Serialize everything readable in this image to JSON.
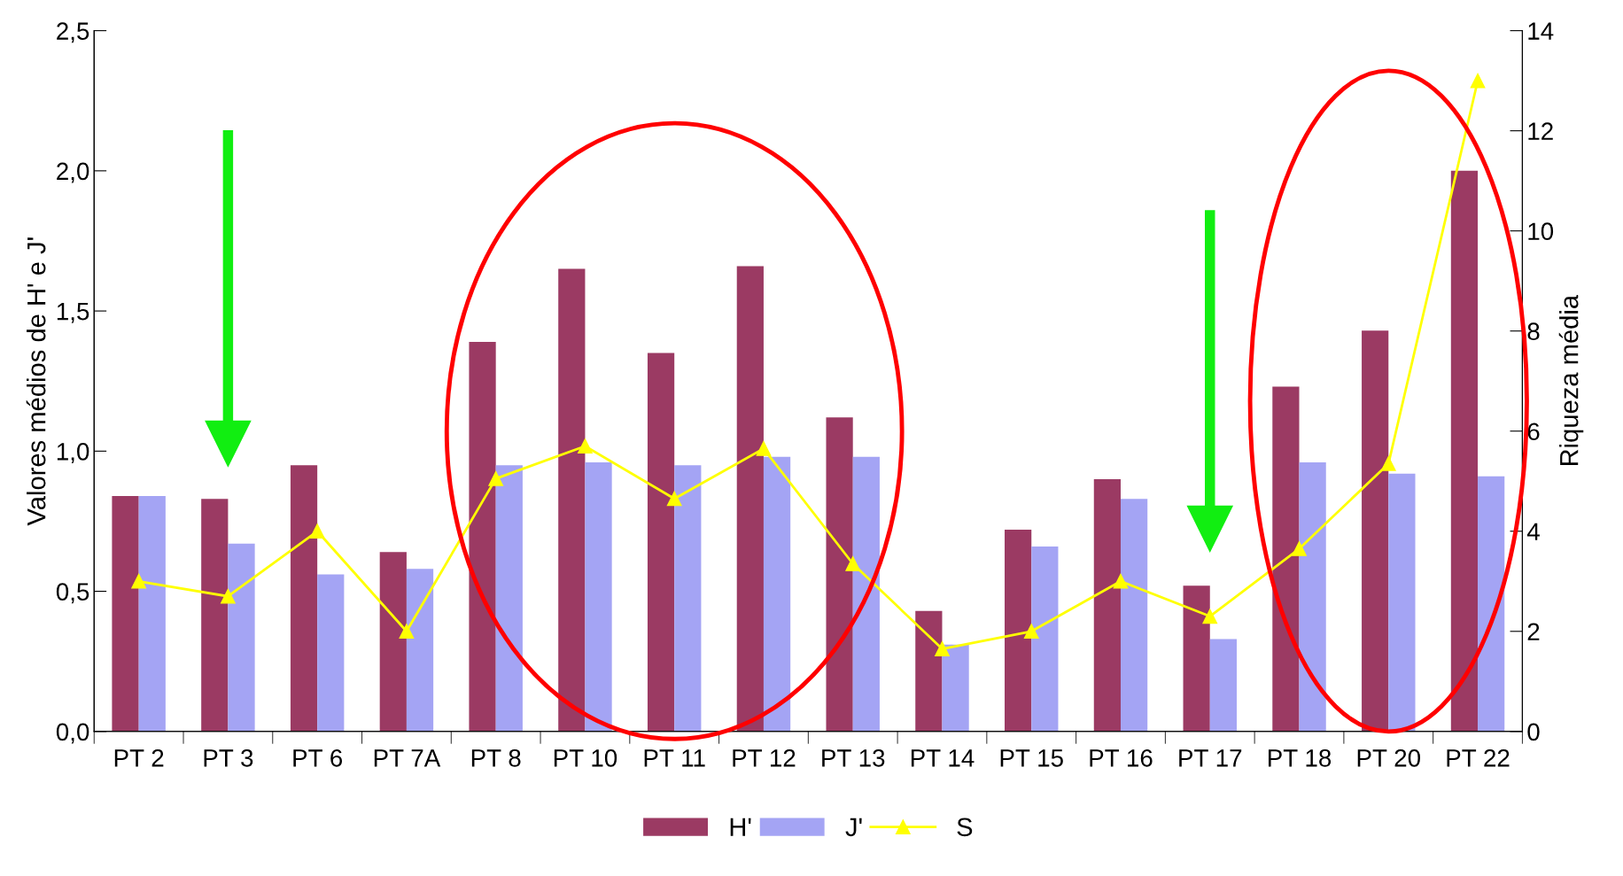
{
  "chart_data": {
    "type": "bar",
    "ylabel": "Valores médios de H' e J'",
    "y2label": "Riqueza média",
    "categories": [
      "PT 2",
      "PT 3",
      "PT 6",
      "PT 7A",
      "PT 8",
      "PT 10",
      "PT 11",
      "PT 12",
      "PT 13",
      "PT 14",
      "PT 15",
      "PT 16",
      "PT 17",
      "PT 18",
      "PT 20",
      "PT 22"
    ],
    "series": [
      {
        "name": "H'",
        "color": "#9b3a63",
        "values": [
          0.84,
          0.83,
          0.95,
          0.64,
          1.39,
          1.65,
          1.35,
          1.66,
          1.12,
          0.43,
          0.72,
          0.9,
          0.52,
          1.23,
          1.43,
          2.0
        ]
      },
      {
        "name": "J'",
        "color": "#a4a4f4",
        "values": [
          0.84,
          0.67,
          0.56,
          0.58,
          0.95,
          0.96,
          0.95,
          0.98,
          0.98,
          0.31,
          0.66,
          0.83,
          0.33,
          0.96,
          0.92,
          0.91
        ]
      },
      {
        "name": "S",
        "type": "line",
        "axis": "y2",
        "color": "#ffff00",
        "marker": "triangle",
        "values": [
          3.0,
          2.7,
          4.0,
          2.0,
          5.05,
          5.7,
          4.65,
          5.65,
          3.35,
          1.65,
          2.0,
          3.0,
          2.3,
          3.65,
          5.35,
          13.0
        ]
      }
    ],
    "ylim": [
      0,
      2.5
    ],
    "yticks": [
      {
        "value": 0,
        "label": "0,0"
      },
      {
        "value": 0.5,
        "label": "0,5"
      },
      {
        "value": 1.0,
        "label": "1,0"
      },
      {
        "value": 1.5,
        "label": "1,5"
      },
      {
        "value": 2.0,
        "label": "2,0"
      },
      {
        "value": 2.5,
        "label": "2,5"
      }
    ],
    "y2lim": [
      0,
      14
    ],
    "y2ticks": [
      0,
      2,
      4,
      6,
      8,
      10,
      12,
      14
    ],
    "grid": false,
    "legend": "bottom"
  }
}
